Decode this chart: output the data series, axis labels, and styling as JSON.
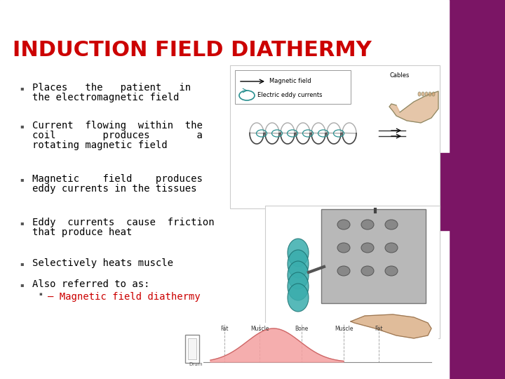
{
  "title": "INDUCTION FIELD DIATHERMY",
  "title_color": "#cc0000",
  "title_fontsize": 22,
  "background_color": "#d8d8d8",
  "right_bar_color": "#7b1565",
  "slide_white": "#ffffff",
  "bullet_color": "#000000",
  "bullet_fontsize": 10,
  "sub_bullet_color": "#cc0000",
  "bullet_items": [
    [
      "Places   the   patient   in",
      "the electromagnetic field"
    ],
    [
      "Current  flowing  within  the",
      "coil        produces        a",
      "rotating magnetic field"
    ],
    [
      "Magnetic    field    produces",
      "eddy currents in the tissues"
    ],
    [
      "Eddy  currents  cause  friction",
      "that produce heat"
    ],
    [
      "Selectively heats muscle"
    ],
    [
      "Also referred to as:"
    ]
  ],
  "sub_bullet_text": "– Magnetic field diathermy",
  "coil_color": "#555555",
  "eddy_color": "#2a9090",
  "device_color": "#b0b0b0",
  "teal_color": "#3aadad",
  "skin_color": "#d4a070",
  "graph_fill": "#f4a0a0",
  "graph_line": "#cc6666"
}
